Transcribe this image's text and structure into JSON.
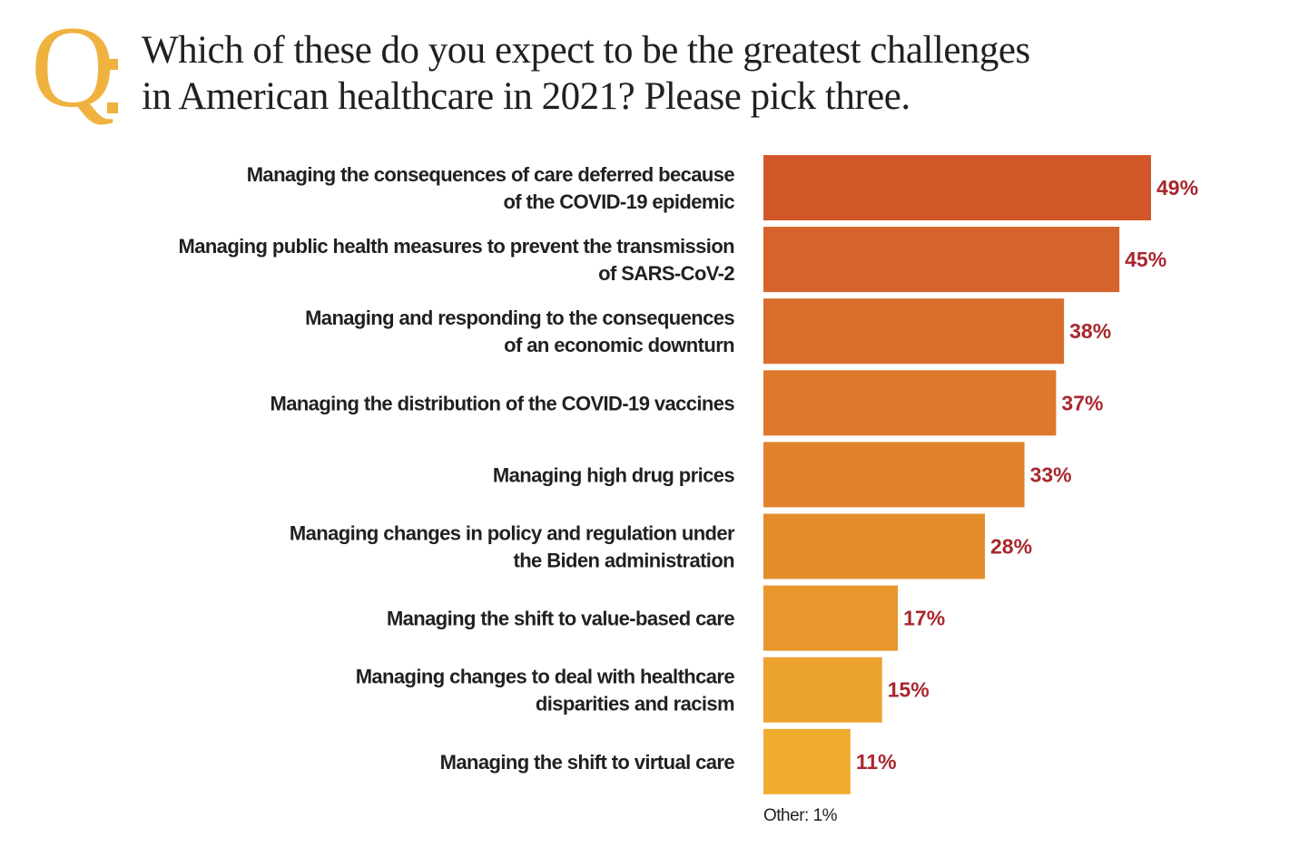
{
  "header": {
    "q_letter": "Q",
    "question_line1": "Which of these do you expect to be the greatest challenges",
    "question_line2": "in American healthcare in 2021? Please pick three."
  },
  "colors": {
    "q_accent": "#efb23f",
    "bar_top": "#d2582a",
    "bar_bottom": "#efac2e",
    "value_text": "#a8272e",
    "label_text": "#231f20"
  },
  "chart_data": {
    "type": "bar",
    "orientation": "horizontal",
    "title": "Which of these do you expect to be the greatest challenges in American healthcare in 2021? Please pick three.",
    "xlabel": "",
    "ylabel": "",
    "xlim": [
      0,
      49
    ],
    "unit": "%",
    "categories": [
      [
        "Managing the consequences of care deferred because",
        "of the COVID-19 epidemic"
      ],
      [
        "Managing public health measures to prevent the transmission",
        "of SARS-CoV-2"
      ],
      [
        "Managing and responding to the consequences",
        "of an economic downturn"
      ],
      [
        "Managing the distribution of the COVID-19 vaccines"
      ],
      [
        "Managing high drug prices"
      ],
      [
        "Managing changes in policy and regulation under",
        "the Biden administration"
      ],
      [
        "Managing the shift to value-based care"
      ],
      [
        "Managing changes to deal with healthcare",
        "disparities and racism"
      ],
      [
        "Managing the shift to virtual care"
      ]
    ],
    "values": [
      49,
      45,
      38,
      37,
      33,
      28,
      17,
      15,
      11
    ],
    "value_labels": [
      "49%",
      "45%",
      "38%",
      "37%",
      "33%",
      "28%",
      "17%",
      "15%",
      "11%"
    ],
    "grid": false
  },
  "footnote": {
    "other": "Other: 1%"
  }
}
